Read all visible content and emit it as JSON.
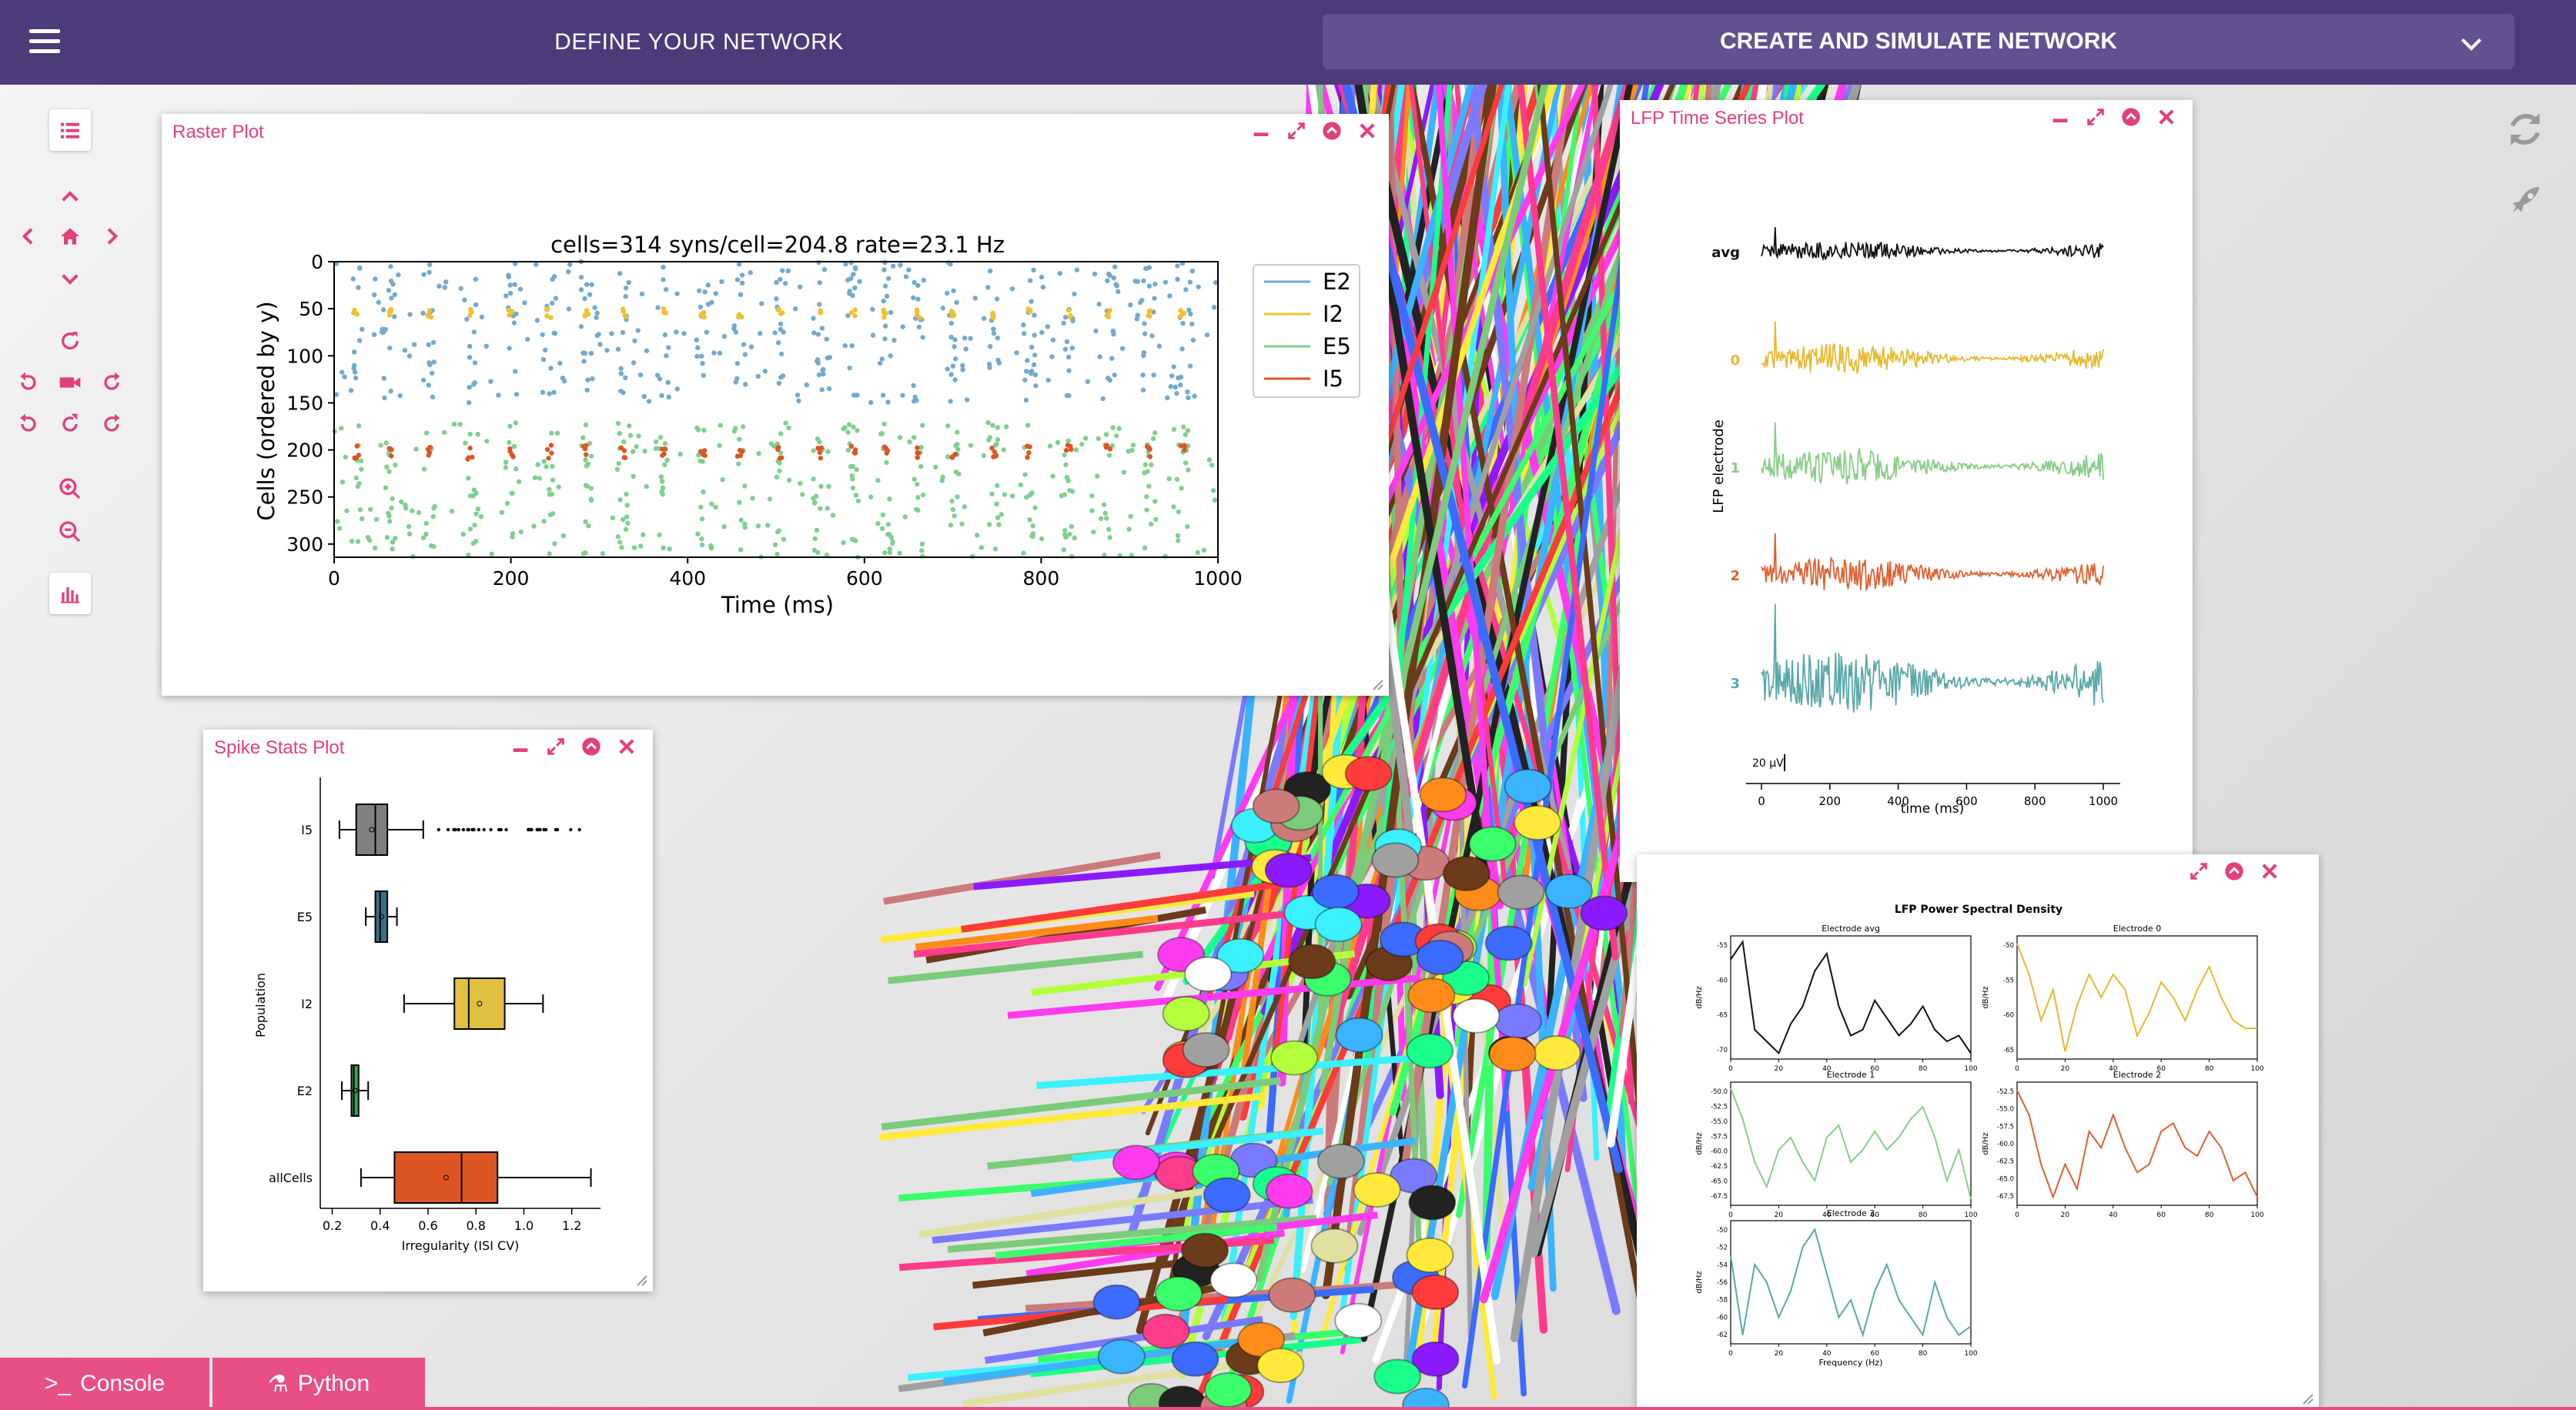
{
  "topbar": {
    "define_label": "DEFINE YOUR NETWORK",
    "create_label": "CREATE AND SIMULATE NETWORK"
  },
  "toolbar_icons": [
    "list-icon",
    "chevron-up-icon",
    "chevron-left-icon",
    "home-icon",
    "chevron-right-icon",
    "chevron-down-icon",
    "rotate-icon",
    "rotate-left-icon",
    "camera-icon",
    "rotate-right-icon",
    "undo-icon",
    "reset-icon",
    "redo-icon",
    "zoom-in-icon",
    "zoom-out-icon",
    "bar-chart-icon"
  ],
  "right_icons": [
    "refresh-icon",
    "rocket-icon"
  ],
  "colors": {
    "topbar": "#4d3b79",
    "accent": "#e2407a",
    "E2": "#74a9cf",
    "I2": "#f0c030",
    "E5": "#7fcf8f",
    "I5": "#dd5522"
  },
  "raster": {
    "title": "Raster Plot",
    "chart_title": "cells=314 syns/cell=204.8 rate=23.1 Hz",
    "ylabel": "Cells (ordered by y)",
    "xlabel": "Time (ms)",
    "xticks": [
      "0",
      "200",
      "400",
      "600",
      "800",
      "1000"
    ],
    "yticks": [
      "0",
      "50",
      "100",
      "150",
      "200",
      "250",
      "300"
    ],
    "legend": [
      "E2",
      "I2",
      "E5",
      "I5"
    ]
  },
  "lfp": {
    "title": "LFP Time Series Plot",
    "rows": [
      "avg",
      "0",
      "1",
      "2",
      "3"
    ],
    "ylabel": "LFP electrode",
    "scale": "20 μV",
    "xticks": [
      "0",
      "200",
      "400",
      "600",
      "800",
      "1000"
    ],
    "xlabel": "time (ms)"
  },
  "spike": {
    "title": "Spike Stats Plot",
    "ylabel": "Population",
    "xlabel": "Irregularity (ISI CV)",
    "categories": [
      "I5",
      "E5",
      "I2",
      "E2",
      "allCells"
    ],
    "xticks": [
      "0.2",
      "0.4",
      "0.6",
      "0.8",
      "1.0",
      "1.2"
    ]
  },
  "psd": {
    "title": "LFP Power Spectral Density",
    "panels": [
      {
        "name": "Electrode avg",
        "yticks": [
          "-55",
          "-60",
          "-65",
          "-70"
        ]
      },
      {
        "name": "Electrode 0",
        "yticks": [
          "-50",
          "-55",
          "-60",
          "-65"
        ]
      },
      {
        "name": "Electrode 1",
        "yticks": [
          "-50.0",
          "-52.5",
          "-55.0",
          "-57.5",
          "-60.0",
          "-62.5",
          "-65.0",
          "-67.5"
        ]
      },
      {
        "name": "Electrode 2",
        "yticks": [
          "-52.5",
          "-55.0",
          "-57.5",
          "-60.0",
          "-62.5",
          "-65.0",
          "-67.5"
        ]
      },
      {
        "name": "Electrode 3",
        "yticks": [
          "-50",
          "-52",
          "-54",
          "-56",
          "-58",
          "-60",
          "-62"
        ]
      }
    ],
    "ylabel": "dB/Hz",
    "xticks": [
      "0",
      "20",
      "40",
      "60",
      "80",
      "100"
    ],
    "xlabel": "Frequency (Hz)"
  },
  "chart_data": [
    {
      "type": "scatter",
      "title": "cells=314 syns/cell=204.8 rate=23.1 Hz",
      "xlabel": "Time (ms)",
      "ylabel": "Cells (ordered by y)",
      "xlim": [
        0,
        1000
      ],
      "ylim": [
        314,
        0
      ],
      "legend": "right",
      "series": [
        {
          "name": "E2",
          "cells": [
            0,
            150
          ]
        },
        {
          "name": "I2",
          "cells": [
            50,
            60
          ]
        },
        {
          "name": "E5",
          "cells": [
            170,
            314
          ]
        },
        {
          "name": "I5",
          "cells": [
            195,
            210
          ]
        }
      ]
    },
    {
      "type": "box",
      "xlabel": "Irregularity (ISI CV)",
      "ylabel": "Population",
      "xlim": [
        0.15,
        1.32
      ],
      "categories": [
        "I5",
        "E5",
        "I2",
        "E2",
        "allCells"
      ],
      "boxes": [
        {
          "name": "I5",
          "min": 0.23,
          "q1": 0.3,
          "median": 0.38,
          "q3": 0.43,
          "max": 0.58,
          "color": "#808080"
        },
        {
          "name": "E5",
          "min": 0.34,
          "q1": 0.38,
          "median": 0.4,
          "q3": 0.43,
          "max": 0.47,
          "color": "#38708a"
        },
        {
          "name": "I2",
          "min": 0.5,
          "q1": 0.71,
          "median": 0.77,
          "q3": 0.92,
          "max": 1.08,
          "color": "#e0c040"
        },
        {
          "name": "E2",
          "min": 0.24,
          "q1": 0.28,
          "median": 0.29,
          "q3": 0.31,
          "max": 0.35,
          "color": "#3a9f5a"
        },
        {
          "name": "allCells",
          "min": 0.32,
          "q1": 0.46,
          "median": 0.74,
          "q3": 0.89,
          "max": 1.28,
          "color": "#dd5522"
        }
      ]
    },
    {
      "type": "line",
      "title": "LFP Power Spectral Density",
      "xlabel": "Frequency (Hz)",
      "ylabel": "dB/Hz",
      "x": [
        0,
        5,
        10,
        15,
        20,
        25,
        30,
        35,
        40,
        45,
        50,
        55,
        60,
        65,
        70,
        75,
        80,
        85,
        90,
        95,
        100
      ],
      "series": [
        {
          "name": "Electrode avg",
          "values": [
            -55,
            -52,
            -67,
            -69,
            -71,
            -66,
            -63,
            -57,
            -54,
            -63,
            -68,
            -67,
            -62,
            -65,
            -68,
            -66,
            -63,
            -67,
            -69,
            -68,
            -71
          ]
        },
        {
          "name": "Electrode 0",
          "values": [
            -52,
            -56,
            -62,
            -58,
            -66,
            -60,
            -56,
            -59,
            -56,
            -58,
            -64,
            -61,
            -57,
            -59,
            -62,
            -58,
            -55,
            -59,
            -62,
            -63,
            -63
          ]
        },
        {
          "name": "Electrode 1",
          "values": [
            -50,
            -55,
            -62,
            -66,
            -60,
            -58,
            -62,
            -65,
            -58,
            -56,
            -62,
            -60,
            -57,
            -60,
            -58,
            -55,
            -53,
            -58,
            -65,
            -60,
            -68
          ]
        },
        {
          "name": "Electrode 2",
          "values": [
            -53,
            -56,
            -62,
            -66,
            -62,
            -65,
            -58,
            -60,
            -56,
            -60,
            -63,
            -62,
            -58,
            -57,
            -60,
            -61,
            -58,
            -60,
            -64,
            -63,
            -66
          ]
        },
        {
          "name": "Electrode 3",
          "values": [
            -53,
            -62,
            -54,
            -56,
            -60,
            -57,
            -52,
            -50,
            -55,
            -60,
            -58,
            -62,
            -57,
            -54,
            -58,
            -60,
            -62,
            -56,
            -60,
            -62,
            -61
          ]
        }
      ],
      "colors": [
        "#111111",
        "#e8b830",
        "#88cc88",
        "#e06030",
        "#5aa8a8"
      ]
    }
  ]
}
